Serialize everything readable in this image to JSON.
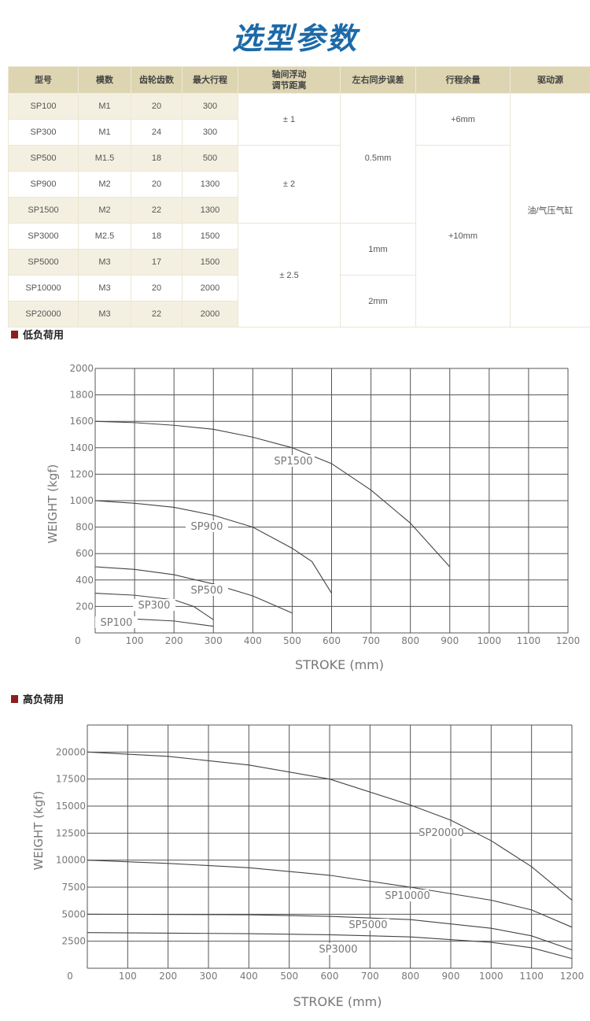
{
  "title": "选型参数",
  "table": {
    "headers": [
      "型号",
      "模数",
      "齿轮齿数",
      "最大行程",
      "轴间浮动\n调节距离",
      "左右同步误差",
      "行程余量",
      "驱动源"
    ],
    "rows": [
      {
        "model": "SP100",
        "module": "M1",
        "teeth": "20",
        "max_stroke": "300"
      },
      {
        "model": "SP300",
        "module": "M1",
        "teeth": "24",
        "max_stroke": "300"
      },
      {
        "model": "SP500",
        "module": "M1.5",
        "teeth": "18",
        "max_stroke": "500"
      },
      {
        "model": "SP900",
        "module": "M2",
        "teeth": "20",
        "max_stroke": "1300"
      },
      {
        "model": "SP1500",
        "module": "M2",
        "teeth": "22",
        "max_stroke": "1300"
      },
      {
        "model": "SP3000",
        "module": "M2.5",
        "teeth": "18",
        "max_stroke": "1500"
      },
      {
        "model": "SP5000",
        "module": "M3",
        "teeth": "17",
        "max_stroke": "1500"
      },
      {
        "model": "SP10000",
        "module": "M3",
        "teeth": "20",
        "max_stroke": "2000"
      },
      {
        "model": "SP20000",
        "module": "M3",
        "teeth": "22",
        "max_stroke": "2000"
      }
    ],
    "float_adjust": [
      "± 1",
      "± 2",
      "± 2.5"
    ],
    "sync_error": [
      "0.5mm",
      "1mm",
      "2mm"
    ],
    "stroke_margin": [
      "+6mm",
      "+10mm"
    ],
    "drive_source": "油/气压气缸"
  },
  "sections": {
    "low_load": "低负荷用",
    "high_load": "高负荷用"
  },
  "colors": {
    "title": "#1c6aa8",
    "header_bg": "#ddd5b1",
    "alt_row": "#f4f0e1",
    "section_marker": "#8f1d1d"
  },
  "chart_data": [
    {
      "type": "line",
      "xlabel": "STROKE (mm)",
      "ylabel": "WEIGHT (kgf)",
      "xlim": [
        0,
        1200
      ],
      "ylim": [
        0,
        2000
      ],
      "xticks": [
        "0",
        "100",
        "200",
        "300",
        "400",
        "500",
        "600",
        "700",
        "800",
        "900",
        "1000",
        "1100",
        "1200"
      ],
      "yticks": [
        "200",
        "400",
        "600",
        "800",
        "1000",
        "1200",
        "1400",
        "1600",
        "1800",
        "2000"
      ],
      "grid": true,
      "series": [
        {
          "name": "SP1500",
          "x": [
            0,
            100,
            200,
            300,
            400,
            500,
            600,
            700,
            800,
            900
          ],
          "y": [
            1600,
            1590,
            1570,
            1540,
            1480,
            1400,
            1280,
            1080,
            830,
            500
          ]
        },
        {
          "name": "SP900",
          "x": [
            0,
            100,
            200,
            300,
            400,
            500,
            550,
            600
          ],
          "y": [
            1000,
            980,
            950,
            890,
            800,
            640,
            540,
            300
          ]
        },
        {
          "name": "SP500",
          "x": [
            0,
            100,
            200,
            300,
            400,
            500
          ],
          "y": [
            500,
            480,
            440,
            370,
            280,
            150
          ]
        },
        {
          "name": "SP300",
          "x": [
            0,
            100,
            200,
            250,
            300
          ],
          "y": [
            300,
            285,
            250,
            200,
            100
          ]
        },
        {
          "name": "SP100",
          "x": [
            0,
            100,
            200,
            300
          ],
          "y": [
            100,
            105,
            90,
            50
          ]
        }
      ]
    },
    {
      "type": "line",
      "xlabel": "STROKE (mm)",
      "ylabel": "WEIGHT (kgf)",
      "xlim": [
        0,
        1200
      ],
      "ylim": [
        0,
        22500
      ],
      "xticks": [
        "0",
        "100",
        "200",
        "300",
        "400",
        "500",
        "600",
        "700",
        "800",
        "900",
        "1000",
        "1100",
        "1200"
      ],
      "yticks": [
        "2500",
        "5000",
        "7500",
        "10000",
        "12500",
        "15000",
        "17500",
        "20000"
      ],
      "grid": true,
      "series": [
        {
          "name": "SP20000",
          "x": [
            0,
            200,
            400,
            600,
            800,
            900,
            1000,
            1100,
            1200
          ],
          "y": [
            20000,
            19600,
            18800,
            17500,
            15100,
            13700,
            11800,
            9400,
            6300
          ]
        },
        {
          "name": "SP10000",
          "x": [
            0,
            200,
            400,
            600,
            800,
            1000,
            1100,
            1200
          ],
          "y": [
            10000,
            9700,
            9300,
            8600,
            7500,
            6300,
            5400,
            3800
          ]
        },
        {
          "name": "SP5000",
          "x": [
            0,
            400,
            600,
            800,
            1000,
            1100,
            1200
          ],
          "y": [
            5000,
            4950,
            4800,
            4500,
            3700,
            3000,
            1700
          ]
        },
        {
          "name": "SP3000",
          "x": [
            0,
            400,
            600,
            800,
            1000,
            1100,
            1200
          ],
          "y": [
            3300,
            3200,
            3100,
            2900,
            2400,
            1900,
            900
          ]
        }
      ]
    }
  ]
}
